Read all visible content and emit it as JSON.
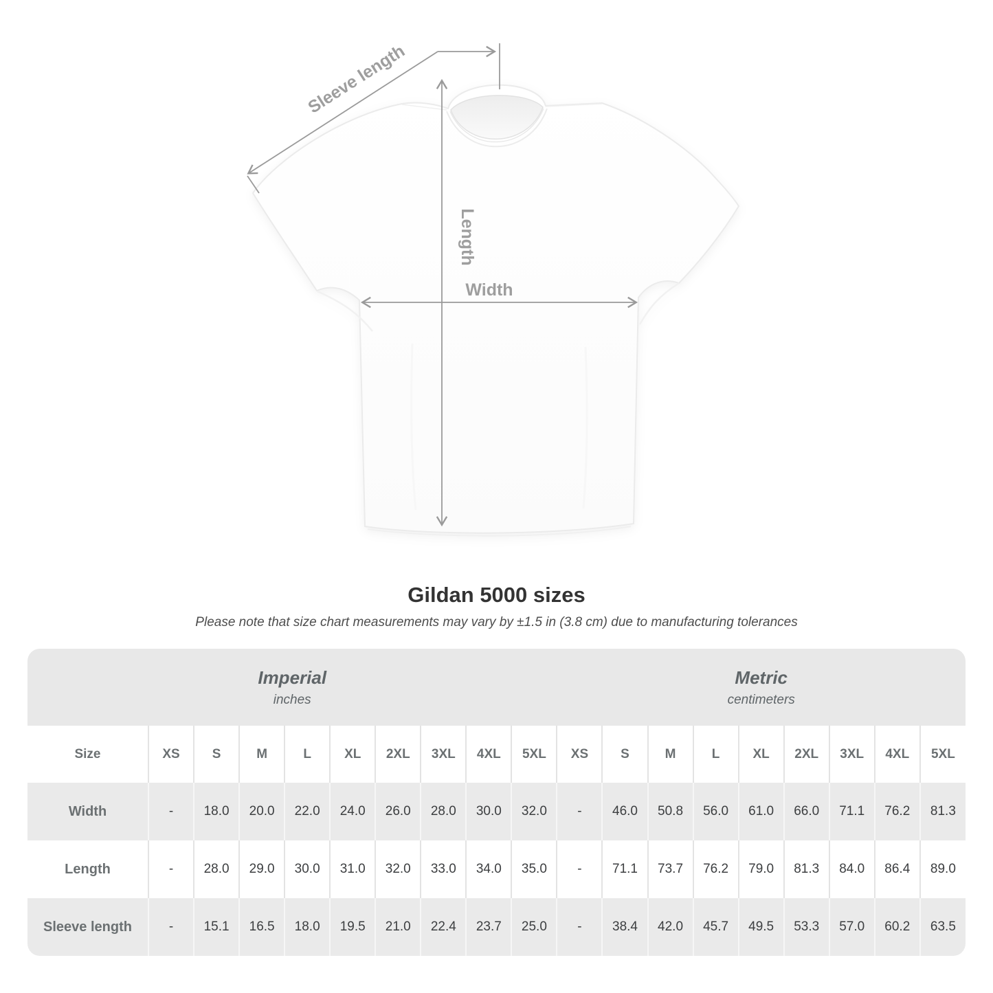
{
  "diagram": {
    "sleeve_length_label": "Sleeve length",
    "length_label": "Length",
    "width_label": "Width"
  },
  "chart_data": {
    "type": "table",
    "title": "Gildan 5000 sizes",
    "subtitle": "Please note that size chart measurements may vary by ±1.5 in (3.8 cm) due to manufacturing tolerances",
    "groups": [
      {
        "label": "Imperial",
        "unit": "inches"
      },
      {
        "label": "Metric",
        "unit": "centimeters"
      }
    ],
    "size_column_header": "Size",
    "size_labels": [
      "XS",
      "S",
      "M",
      "L",
      "XL",
      "2XL",
      "3XL",
      "4XL",
      "5XL"
    ],
    "rows": [
      {
        "label": "Width",
        "imperial": [
          "-",
          "18.0",
          "20.0",
          "22.0",
          "24.0",
          "26.0",
          "28.0",
          "30.0",
          "32.0"
        ],
        "metric": [
          "-",
          "46.0",
          "50.8",
          "56.0",
          "61.0",
          "66.0",
          "71.1",
          "76.2",
          "81.3"
        ]
      },
      {
        "label": "Length",
        "imperial": [
          "-",
          "28.0",
          "29.0",
          "30.0",
          "31.0",
          "32.0",
          "33.0",
          "34.0",
          "35.0"
        ],
        "metric": [
          "-",
          "71.1",
          "73.7",
          "76.2",
          "79.0",
          "81.3",
          "84.0",
          "86.4",
          "89.0"
        ]
      },
      {
        "label": "Sleeve length",
        "imperial": [
          "-",
          "15.1",
          "16.5",
          "18.0",
          "19.5",
          "21.0",
          "22.4",
          "23.7",
          "25.0"
        ],
        "metric": [
          "-",
          "38.4",
          "42.0",
          "45.7",
          "49.5",
          "53.3",
          "57.0",
          "60.2",
          "63.5"
        ]
      }
    ]
  },
  "colors": {
    "arrow": "#9a9a9a",
    "diagram_label": "#9e9e9e",
    "group_header_bg": "#e8e8e8",
    "row_alt_bg": "#eaeaea",
    "header_text": "#6b7072",
    "value_text": "#3c3e40"
  }
}
